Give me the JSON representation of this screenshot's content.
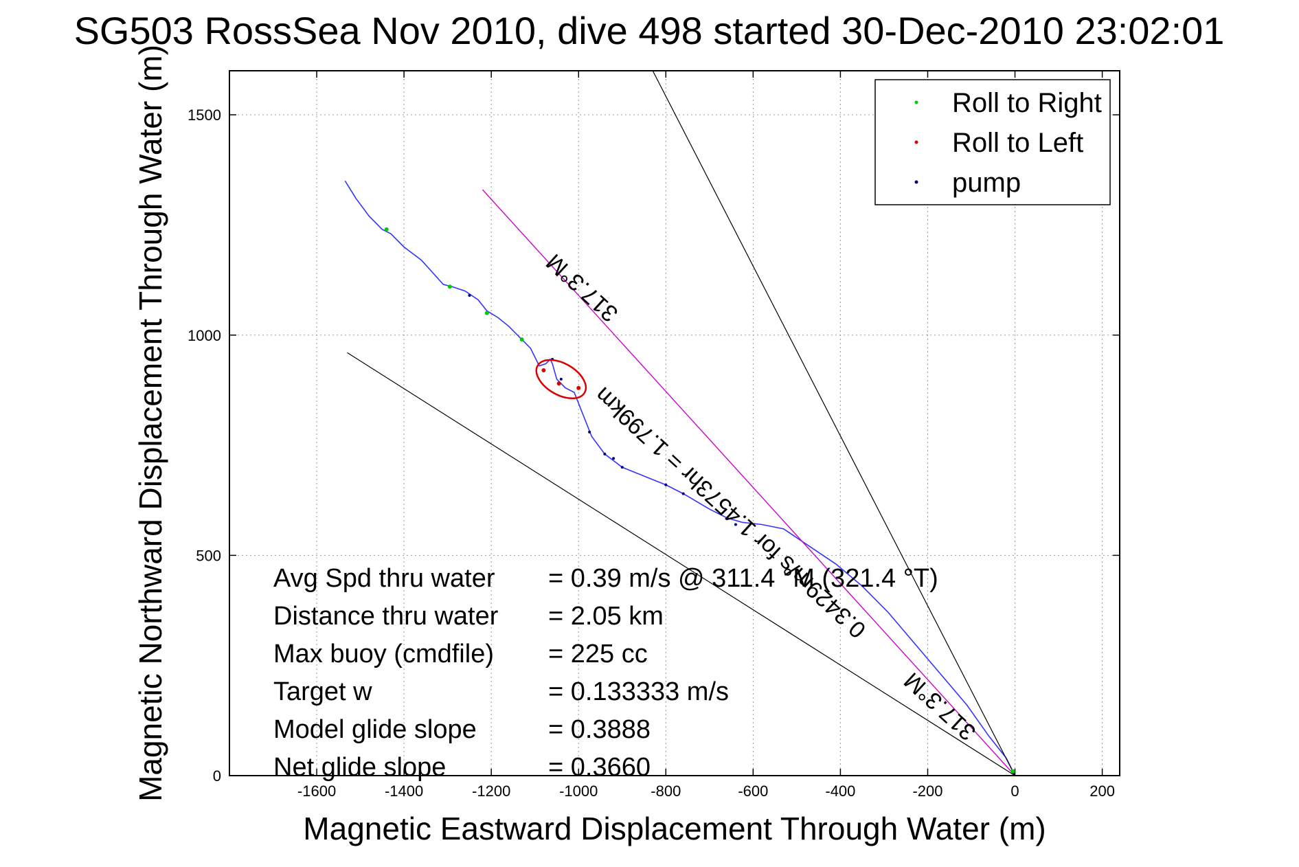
{
  "chart_data": {
    "type": "line",
    "title": "SG503 RossSea Nov 2010, dive 498 started 30-Dec-2010 23:02:01",
    "xlabel": "Magnetic Eastward Displacement Through Water (m)",
    "ylabel": "Magnetic Northward Displacement Through Water (m)",
    "xlim": [
      -1800,
      240
    ],
    "ylim": [
      0,
      1600
    ],
    "x_ticks": [
      -1600,
      -1400,
      -1200,
      -1000,
      -800,
      -600,
      -400,
      -200,
      0,
      200
    ],
    "y_ticks": [
      0,
      500,
      1000,
      1500
    ],
    "grid": true,
    "legend_position": "top-right",
    "legend": [
      {
        "label": "Roll to Right",
        "color": "#00cc00"
      },
      {
        "label": "Roll to Left",
        "color": "#dd0000"
      },
      {
        "label": "pump",
        "color": "#000080"
      }
    ],
    "series": [
      {
        "style": "track",
        "color": "#3333ff",
        "x": [
          0,
          -20,
          -60,
          -110,
          -170,
          -230,
          -290,
          -350,
          -410,
          -470,
          -530,
          -580,
          -625,
          -660,
          -700,
          -760,
          -800,
          -850,
          -900,
          -940,
          -970,
          -990,
          -1010,
          -1030,
          -1050,
          -1060,
          -1065,
          -1075,
          -1090,
          -1110,
          -1130,
          -1160,
          -1185,
          -1210,
          -1230,
          -1260,
          -1290,
          -1310,
          -1360,
          -1400,
          -1430,
          -1450,
          -1480,
          -1510,
          -1535
        ],
        "y": [
          0,
          40,
          90,
          160,
          230,
          300,
          370,
          430,
          480,
          520,
          560,
          570,
          575,
          585,
          605,
          640,
          660,
          680,
          700,
          730,
          770,
          820,
          870,
          880,
          900,
          935,
          945,
          935,
          930,
          970,
          990,
          1020,
          1040,
          1055,
          1080,
          1100,
          1110,
          1115,
          1170,
          1200,
          1230,
          1240,
          1270,
          1310,
          1350
        ]
      },
      {
        "style": "target-line",
        "color": "#cc00cc",
        "x": [
          0,
          -1220
        ],
        "y": [
          0,
          1330
        ]
      },
      {
        "style": "heading-bound",
        "color": "#000000",
        "x": [
          0,
          -1530
        ],
        "y": [
          0,
          960
        ]
      },
      {
        "style": "heading-bound",
        "color": "#000000",
        "x": [
          0,
          -830
        ],
        "y": [
          0,
          1600
        ]
      },
      {
        "style": "roll-right",
        "color": "#00cc00",
        "x": [
          -5,
          -1440,
          -1295,
          -1210,
          -1130
        ],
        "y": [
          10,
          1240,
          1110,
          1050,
          990
        ]
      },
      {
        "style": "roll-left",
        "color": "#dd0000",
        "x": [
          -1045,
          -1000,
          -1080
        ],
        "y": [
          890,
          880,
          920
        ]
      },
      {
        "style": "pump",
        "color": "#000080",
        "x": [
          -1060,
          -1040,
          -975,
          -940,
          -920,
          -900,
          -800,
          -760,
          -640,
          -1250
        ],
        "y": [
          945,
          900,
          780,
          730,
          720,
          700,
          660,
          640,
          570,
          1090
        ]
      }
    ],
    "annotations": [
      {
        "text": "317.3°M",
        "x": -980,
        "y": 1120,
        "rotate": 42.6
      },
      {
        "text": "0.3429m/s for 1.4573hr = 1.799km",
        "x": -640,
        "y": 610,
        "rotate": 42.6
      },
      {
        "text": "317.3°M",
        "x": -160,
        "y": 170,
        "rotate": 42.6
      }
    ],
    "stats": [
      {
        "label": "Avg Spd thru water",
        "value": "=  0.39 m/s @ 311.4 °M (321.4 °T)"
      },
      {
        "label": "Distance thru water",
        "value": "=  2.05 km"
      },
      {
        "label": "Max buoy (cmdfile)",
        "value": "= 225 cc"
      },
      {
        "label": "Target w",
        "value": "= 0.133333 m/s"
      },
      {
        "label": "Model glide slope",
        "value": "= 0.3888"
      },
      {
        "label": "Net glide slope",
        "value": "= 0.3660"
      }
    ]
  }
}
